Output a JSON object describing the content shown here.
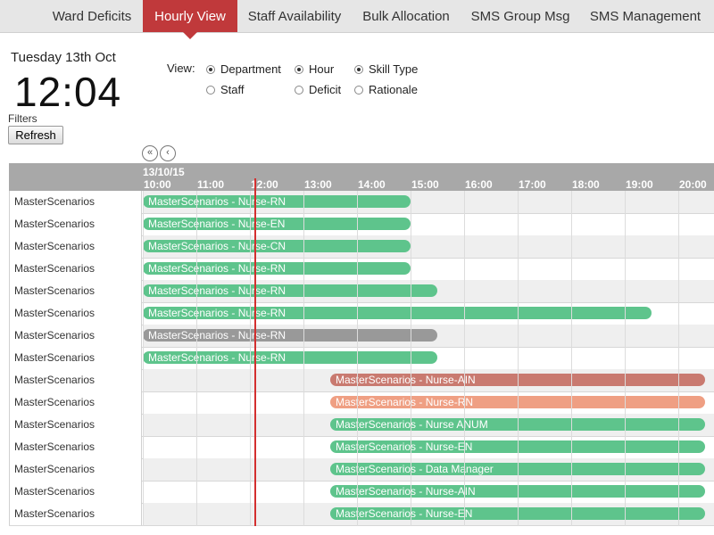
{
  "nav": {
    "tabs": [
      {
        "label": "Ward Deficits",
        "active": false
      },
      {
        "label": "Hourly View",
        "active": true
      },
      {
        "label": "Staff Availability",
        "active": false
      },
      {
        "label": "Bulk Allocation",
        "active": false
      },
      {
        "label": "SMS Group Msg",
        "active": false
      },
      {
        "label": "SMS Management",
        "active": false
      }
    ]
  },
  "clock": {
    "date": "Tuesday 13th Oct",
    "time": "12:04"
  },
  "filters": {
    "label": "Filters",
    "refresh_label": "Refresh"
  },
  "view": {
    "label": "View:",
    "options": [
      {
        "label": "Department",
        "checked": true
      },
      {
        "label": "Hour",
        "checked": true
      },
      {
        "label": "Skill Type",
        "checked": true
      },
      {
        "label": "Staff",
        "checked": false
      },
      {
        "label": "Deficit",
        "checked": false
      },
      {
        "label": "Rationale",
        "checked": false
      }
    ]
  },
  "timeline": {
    "date_label": "13/10/15",
    "hours": [
      "10:00",
      "11:00",
      "12:00",
      "13:00",
      "14:00",
      "15:00",
      "16:00",
      "17:00",
      "18:00",
      "19:00",
      "20:00"
    ],
    "start_hour": 10,
    "now_hour": 12.08,
    "colors": {
      "green": "#5ec48c",
      "gray": "#999999",
      "red": "#c97a70",
      "salmon": "#ef9f83"
    },
    "rows": [
      {
        "label": "MasterScenarios",
        "bar": "MasterScenarios - Nurse-RN",
        "start": 10,
        "end": 15,
        "color": "green"
      },
      {
        "label": "MasterScenarios",
        "bar": "MasterScenarios - Nurse-EN",
        "start": 10,
        "end": 15,
        "color": "green"
      },
      {
        "label": "MasterScenarios",
        "bar": "MasterScenarios - Nurse-CN",
        "start": 10,
        "end": 15,
        "color": "green"
      },
      {
        "label": "MasterScenarios",
        "bar": "MasterScenarios - Nurse-RN",
        "start": 10,
        "end": 15,
        "color": "green"
      },
      {
        "label": "MasterScenarios",
        "bar": "MasterScenarios - Nurse-RN",
        "start": 10,
        "end": 15.5,
        "color": "green"
      },
      {
        "label": "MasterScenarios",
        "bar": "MasterScenarios - Nurse-RN",
        "start": 10,
        "end": 19.5,
        "color": "green"
      },
      {
        "label": "MasterScenarios",
        "bar": "MasterScenarios - Nurse-RN",
        "start": 10,
        "end": 15.5,
        "color": "gray"
      },
      {
        "label": "MasterScenarios",
        "bar": "MasterScenarios - Nurse-RN",
        "start": 10,
        "end": 15.5,
        "color": "green"
      },
      {
        "label": "MasterScenarios",
        "bar": "MasterScenarios - Nurse-AIN",
        "start": 13.5,
        "end": 20.5,
        "color": "red"
      },
      {
        "label": "MasterScenarios",
        "bar": "MasterScenarios - Nurse-RN",
        "start": 13.5,
        "end": 20.5,
        "color": "salmon"
      },
      {
        "label": "MasterScenarios",
        "bar": "MasterScenarios - Nurse ANUM",
        "start": 13.5,
        "end": 20.5,
        "color": "green"
      },
      {
        "label": "MasterScenarios",
        "bar": "MasterScenarios - Nurse-EN",
        "start": 13.5,
        "end": 20.5,
        "color": "green"
      },
      {
        "label": "MasterScenarios",
        "bar": "MasterScenarios - Data Manager",
        "start": 13.5,
        "end": 20.5,
        "color": "green"
      },
      {
        "label": "MasterScenarios",
        "bar": "MasterScenarios - Nurse-AIN",
        "start": 13.5,
        "end": 20.5,
        "color": "green"
      },
      {
        "label": "MasterScenarios",
        "bar": "MasterScenarios - Nurse-EN",
        "start": 13.5,
        "end": 20.5,
        "color": "green"
      }
    ]
  }
}
